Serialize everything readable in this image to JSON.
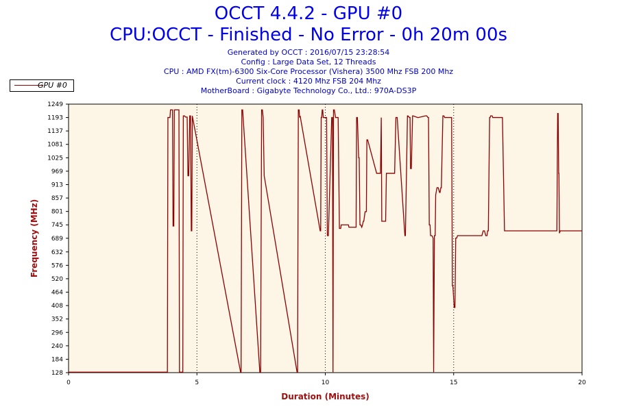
{
  "header": {
    "title": "OCCT 4.4.2 - GPU #0",
    "subtitle": "CPU:OCCT - Finished - No Error - 0h 20m 00s",
    "generated": "Generated by OCCT : 2016/07/15 23:28:54",
    "config": "Config : Large Data Set, 12 Threads",
    "cpu": "CPU : AMD FX(tm)-6300 Six-Core Processor (Vishera) 3500 Mhz FSB 200 Mhz",
    "clock": "Current clock : 4120 Mhz FSB 204 Mhz",
    "motherboard": "MotherBoard : Gigabyte Technology Co., Ltd.: 970A-DS3P"
  },
  "colors": {
    "plot_background": "#fdf5e6",
    "series": "#8b0000",
    "axis_title": "#a01010",
    "title": "#0000ee"
  },
  "chart_data": {
    "type": "line",
    "title": "OCCT 4.4.2 - GPU #0",
    "xlabel": "Duration (Minutes)",
    "ylabel": "Frequency (MHz)",
    "xlim": [
      0,
      20
    ],
    "ylim": [
      128,
      1249
    ],
    "x_ticks": [
      0,
      5,
      10,
      15,
      20
    ],
    "y_ticks": [
      128,
      184,
      240,
      296,
      352,
      408,
      464,
      520,
      576,
      632,
      689,
      745,
      801,
      857,
      913,
      969,
      1025,
      1081,
      1137,
      1193,
      1249
    ],
    "grid": "vertical dotted lines at 5, 10, 15",
    "legend_position": "top-left",
    "series": [
      {
        "name": "GPU #0",
        "x": [
          0,
          3.85,
          3.87,
          3.95,
          3.97,
          4.05,
          4.07,
          4.1,
          4.12,
          4.3,
          4.32,
          4.45,
          4.47,
          4.52,
          4.55,
          4.62,
          4.65,
          4.68,
          4.72,
          4.75,
          4.78,
          4.8,
          4.82,
          6.7,
          6.72,
          6.75,
          6.78,
          7.45,
          7.48,
          7.52,
          7.55,
          7.58,
          7.62,
          8.9,
          8.92,
          8.95,
          8.98,
          9.0,
          9.02,
          9.8,
          9.82,
          9.84,
          9.86,
          9.88,
          9.9,
          9.92,
          10.05,
          10.08,
          10.12,
          10.25,
          10.28,
          10.3,
          10.32,
          10.35,
          10.4,
          10.45,
          10.5,
          10.55,
          10.6,
          10.62,
          10.9,
          10.92,
          11.2,
          11.22,
          11.25,
          11.3,
          11.32,
          11.35,
          11.38,
          11.42,
          11.45,
          11.48,
          11.5,
          11.55,
          11.6,
          11.62,
          11.65,
          12.0,
          12.15,
          12.18,
          12.2,
          12.35,
          12.38,
          12.7,
          12.75,
          12.8,
          13.1,
          13.12,
          13.2,
          13.22,
          13.28,
          13.3,
          13.32,
          13.35,
          13.4,
          13.42,
          13.6,
          13.62,
          13.9,
          13.95,
          14.0,
          14.02,
          14.05,
          14.08,
          14.1,
          14.15,
          14.2,
          14.22,
          14.25,
          14.28,
          14.3,
          14.35,
          14.4,
          14.45,
          14.47,
          14.5,
          14.52,
          14.58,
          14.62,
          14.65,
          14.68,
          14.7,
          14.72,
          14.88,
          14.92,
          14.95,
          14.97,
          15.02,
          15.05,
          15.08,
          15.12,
          15.15,
          16.0,
          16.02,
          16.1,
          16.15,
          16.2,
          16.25,
          16.3,
          16.32,
          16.35,
          16.4,
          16.42,
          16.44,
          16.5,
          16.52,
          16.9,
          16.98,
          17.0,
          19.0,
          19.02,
          19.05,
          19.07,
          19.09,
          19.1,
          19.12,
          19.15,
          20.0
        ],
        "y": [
          130,
          130,
          1193,
          1193,
          1225,
          1225,
          740,
          740,
          1225,
          1225,
          130,
          130,
          1200,
          1200,
          1195,
          1195,
          950,
          950,
          1200,
          1200,
          720,
          720,
          1200,
          130,
          130,
          1225,
          1225,
          130,
          130,
          1225,
          1225,
          1193,
          950,
          130,
          130,
          1225,
          1225,
          1193,
          1200,
          720,
          720,
          1193,
          1193,
          1225,
          1225,
          1193,
          1193,
          700,
          700,
          1193,
          1193,
          130,
          1225,
          1225,
          1193,
          1193,
          1193,
          730,
          730,
          745,
          745,
          735,
          735,
          1193,
          1193,
          1025,
          1025,
          745,
          745,
          735,
          745,
          760,
          760,
          800,
          800,
          1100,
          1100,
          960,
          960,
          1193,
          760,
          760,
          960,
          960,
          1193,
          1193,
          700,
          700,
          1200,
          1200,
          1193,
          1193,
          980,
          980,
          1200,
          1200,
          1193,
          1193,
          1200,
          1200,
          1193,
          1193,
          745,
          745,
          700,
          700,
          690,
          130,
          700,
          700,
          870,
          900,
          900,
          880,
          880,
          900,
          900,
          1200,
          1200,
          1193,
          1193,
          1193,
          1193,
          1193,
          1193,
          490,
          490,
          400,
          400,
          690,
          690,
          700,
          700,
          700,
          700,
          720,
          720,
          700,
          700,
          720,
          720,
          1193,
          1193,
          1200,
          1200,
          1193,
          1193,
          720,
          720,
          720,
          720,
          1210,
          1210,
          960,
          960,
          710,
          720,
          720
        ]
      }
    ]
  }
}
